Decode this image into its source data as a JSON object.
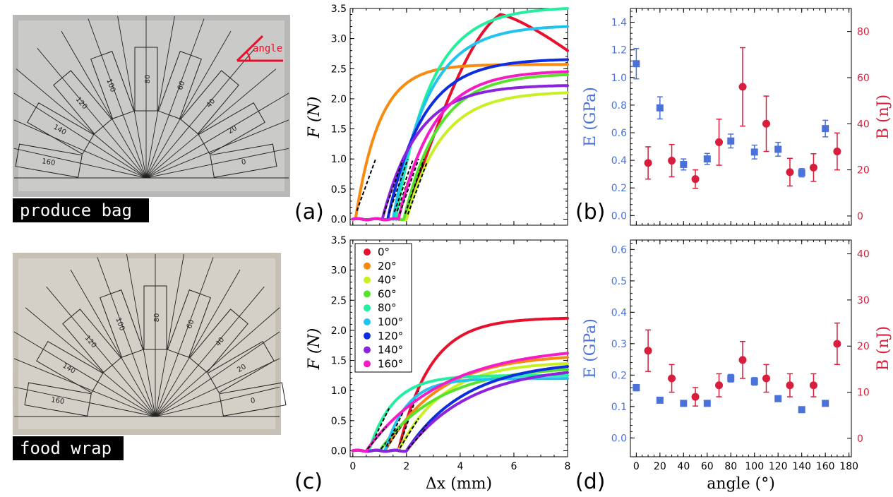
{
  "photos": {
    "top_label": "produce bag",
    "bottom_label": "food wrap",
    "angle_label": "angle",
    "strip_labels_top": [
      "0",
      "20",
      "40",
      "60",
      "80",
      "100",
      "120",
      "140",
      "160"
    ],
    "strip_labels_bottom": [
      "0",
      "20",
      "40",
      "60",
      "80",
      "100",
      "120",
      "140",
      "160"
    ]
  },
  "panel_labels": [
    "(a)",
    "(b)",
    "(c)",
    "(d)"
  ],
  "colors": {
    "0": "#e8112d",
    "20": "#f98a10",
    "40": "#c8f023",
    "60": "#57e32b",
    "80": "#22f0a0",
    "100": "#20c4ee",
    "120": "#0c2ede",
    "140": "#8a22e0",
    "160": "#f51cc6",
    "E": "#4a72d8",
    "B": "#d81e3c",
    "fit": "#000000"
  },
  "chart_data": [
    {
      "id": "a",
      "type": "line",
      "xlabel": "",
      "ylabel": "F (N)",
      "xlim": [
        -0.1,
        8
      ],
      "ylim": [
        -0.1,
        3.5
      ],
      "x_ticks": [
        0,
        2,
        4,
        6,
        8
      ],
      "x_tick_labels": [
        "",
        "",
        "",
        "",
        ""
      ],
      "y_ticks": [
        0.0,
        0.5,
        1.0,
        1.5,
        2.0,
        2.5,
        3.0,
        3.5
      ],
      "y_tick_labels": [
        "0.0",
        "0.5",
        "1.0",
        "1.5",
        "2.0",
        "2.5",
        "3.0",
        "3.5"
      ],
      "series": [
        {
          "name": "0°",
          "onset": 1.9,
          "peak": 3.4,
          "peak_x": 5.5,
          "end": 2.8,
          "shape": "peak"
        },
        {
          "name": "20°",
          "onset": 0.1,
          "peak": 2.57,
          "peak_x": 4.0,
          "end": 2.5,
          "shape": "sat"
        },
        {
          "name": "40°",
          "onset": 2.0,
          "peak": 2.1,
          "peak_x": 8.0,
          "end": 2.1,
          "shape": "rise"
        },
        {
          "name": "60°",
          "onset": 1.9,
          "peak": 2.4,
          "peak_x": 8.0,
          "end": 2.4,
          "shape": "rise"
        },
        {
          "name": "80°",
          "onset": 1.6,
          "peak": 3.5,
          "peak_x": 7.5,
          "end": 3.5,
          "shape": "rise"
        },
        {
          "name": "100°",
          "onset": 1.5,
          "peak": 3.2,
          "peak_x": 8.0,
          "end": 3.2,
          "shape": "rise"
        },
        {
          "name": "120°",
          "onset": 1.3,
          "peak": 2.65,
          "peak_x": 8.0,
          "end": 2.65,
          "shape": "rise"
        },
        {
          "name": "140°",
          "onset": 1.1,
          "peak": 2.22,
          "peak_x": 8.0,
          "end": 2.22,
          "shape": "rise"
        },
        {
          "name": "160°",
          "onset": 1.7,
          "peak": 2.5,
          "peak_x": 7.5,
          "end": 2.45,
          "shape": "rise"
        }
      ]
    },
    {
      "id": "b",
      "type": "scatter",
      "xlabel": "",
      "ylabel": "E (GPa)",
      "ylabel_right": "B (nJ)",
      "xlim": [
        -5,
        182
      ],
      "ylim": [
        -0.07,
        1.5
      ],
      "ylim_right": [
        -4,
        90
      ],
      "x_ticks": [
        0,
        20,
        40,
        60,
        80,
        100,
        120,
        140,
        160,
        180
      ],
      "y_ticks": [
        0.0,
        0.2,
        0.4,
        0.6,
        0.8,
        1.0,
        1.2,
        1.4
      ],
      "y_tick_labels": [
        "0.0",
        "0.2",
        "0.4",
        "0.6",
        "0.8",
        "1.0",
        "1.2",
        "1.4"
      ],
      "y_ticks_right": [
        0,
        20,
        40,
        60,
        80
      ],
      "E": {
        "angle": [
          0,
          20,
          40,
          60,
          80,
          100,
          120,
          140,
          160
        ],
        "value": [
          1.1,
          0.78,
          0.37,
          0.41,
          0.54,
          0.46,
          0.48,
          0.31,
          0.63
        ],
        "err": [
          0.11,
          0.08,
          0.04,
          0.04,
          0.05,
          0.05,
          0.05,
          0.03,
          0.06
        ]
      },
      "B": {
        "angle": [
          10,
          30,
          50,
          70,
          90,
          110,
          130,
          150,
          170
        ],
        "value": [
          23,
          24,
          16,
          32,
          56,
          40,
          19,
          21,
          28
        ],
        "err": [
          7,
          7,
          4,
          10,
          17,
          12,
          6,
          6,
          8
        ]
      }
    },
    {
      "id": "c",
      "type": "line",
      "xlabel": "Δx (mm)",
      "ylabel": "F (N)",
      "xlim": [
        -0.1,
        8
      ],
      "ylim": [
        -0.1,
        3.5
      ],
      "x_ticks": [
        0,
        2,
        4,
        6,
        8
      ],
      "x_tick_labels": [
        "0",
        "2",
        "4",
        "6",
        "8"
      ],
      "y_ticks": [
        0.0,
        0.5,
        1.0,
        1.5,
        2.0,
        2.5,
        3.0,
        3.5
      ],
      "y_tick_labels": [
        "0.0",
        "0.5",
        "1.0",
        "1.5",
        "2.0",
        "2.5",
        "3.0",
        "3.5"
      ],
      "legend": [
        "0°",
        "20°",
        "40°",
        "60°",
        "80°",
        "100°",
        "120°",
        "140°",
        "160°"
      ],
      "series": [
        {
          "name": "0°",
          "onset": 1.7,
          "end": 2.2,
          "rate": 0.85
        },
        {
          "name": "20°",
          "onset": 1.2,
          "end": 1.55,
          "rate": 0.5
        },
        {
          "name": "40°",
          "onset": 1.7,
          "end": 1.45,
          "rate": 0.6
        },
        {
          "name": "60°",
          "onset": 1.0,
          "end": 1.35,
          "rate": 0.45
        },
        {
          "name": "80°",
          "onset": 0.6,
          "end": 1.25,
          "rate": 1.1
        },
        {
          "name": "100°",
          "onset": 1.2,
          "end": 1.2,
          "rate": 1.2
        },
        {
          "name": "120°",
          "onset": 2.0,
          "end": 1.4,
          "rate": 0.45
        },
        {
          "name": "140°",
          "onset": 2.0,
          "end": 1.3,
          "rate": 0.42
        },
        {
          "name": "160°",
          "onset": 0.5,
          "end": 1.62,
          "rate": 0.35
        }
      ]
    },
    {
      "id": "d",
      "type": "scatter",
      "xlabel": "angle (°)",
      "ylabel": "E (GPa)",
      "ylabel_right": "B (nJ)",
      "xlim": [
        -5,
        182
      ],
      "ylim": [
        -0.06,
        0.63
      ],
      "ylim_right": [
        -4,
        43
      ],
      "x_ticks": [
        0,
        20,
        40,
        60,
        80,
        100,
        120,
        140,
        160,
        180
      ],
      "x_tick_labels": [
        "0",
        "20",
        "40",
        "60",
        "80",
        "100",
        "120",
        "140",
        "160",
        "180"
      ],
      "y_ticks": [
        0.0,
        0.1,
        0.2,
        0.3,
        0.4,
        0.5,
        0.6
      ],
      "y_tick_labels": [
        "0.0",
        "0.1",
        "0.2",
        "0.3",
        "0.4",
        "0.5",
        "0.6"
      ],
      "y_ticks_right": [
        0,
        10,
        20,
        30,
        40
      ],
      "E": {
        "angle": [
          0,
          20,
          40,
          60,
          80,
          100,
          120,
          140,
          160
        ],
        "value": [
          0.16,
          0.12,
          0.11,
          0.11,
          0.19,
          0.18,
          0.125,
          0.09,
          0.11
        ],
        "err": [
          0.01,
          0.006,
          0.005,
          0.005,
          0.012,
          0.012,
          0.006,
          0.004,
          0.005
        ]
      },
      "B": {
        "angle": [
          10,
          30,
          50,
          70,
          90,
          110,
          130,
          150,
          170
        ],
        "value": [
          19,
          13,
          9,
          11.5,
          17,
          13,
          11.5,
          11.5,
          20.5
        ],
        "err": [
          4.5,
          3,
          2,
          2.5,
          4,
          3,
          2.5,
          2.5,
          4.5
        ]
      }
    }
  ]
}
